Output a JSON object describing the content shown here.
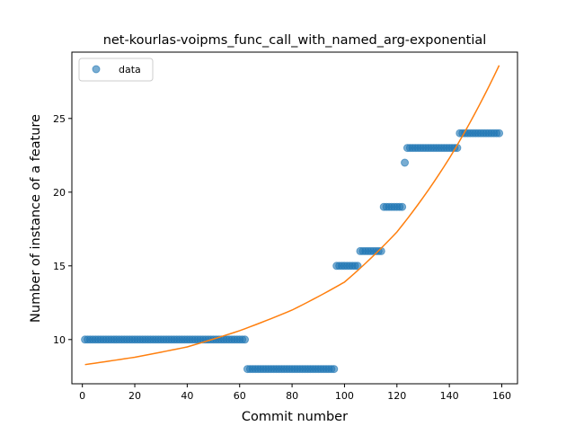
{
  "chart_data": {
    "type": "scatter",
    "title": "net-kourlas-voipms_func_call_with_named_arg-exponential",
    "xlabel": "Commit number",
    "ylabel": "Number of instance of a feature",
    "xlim": [
      -4,
      166
    ],
    "ylim": [
      7,
      29.5
    ],
    "xticks": [
      0,
      20,
      40,
      60,
      80,
      100,
      120,
      140,
      160
    ],
    "yticks": [
      10,
      15,
      20,
      25
    ],
    "grid": false,
    "legend": {
      "position": "top-left",
      "entries": [
        {
          "label": "data",
          "color": "#1f77b4",
          "marker": "circle"
        }
      ]
    },
    "series": [
      {
        "name": "data",
        "kind": "scatter",
        "color": "#1f77b4",
        "segments": [
          {
            "x_start": 1,
            "x_end": 62,
            "y": 10
          },
          {
            "x_start": 63,
            "x_end": 96,
            "y": 8
          },
          {
            "x_start": 97,
            "x_end": 105,
            "y": 15
          },
          {
            "x_start": 106,
            "x_end": 114,
            "y": 16
          },
          {
            "x_start": 115,
            "x_end": 122,
            "y": 19
          },
          {
            "x_start": 123,
            "x_end": 123,
            "y": 22
          },
          {
            "x_start": 124,
            "x_end": 143,
            "y": 23
          },
          {
            "x_start": 144,
            "x_end": 159,
            "y": 24
          }
        ]
      },
      {
        "kind": "line",
        "color": "#ff7f0e",
        "fit": "exponential",
        "x": [
          1,
          20,
          40,
          60,
          80,
          100,
          120,
          140,
          159
        ],
        "y": [
          8.3,
          8.8,
          9.5,
          10.6,
          12.0,
          13.9,
          17.3,
          22.3,
          28.6
        ]
      }
    ]
  }
}
